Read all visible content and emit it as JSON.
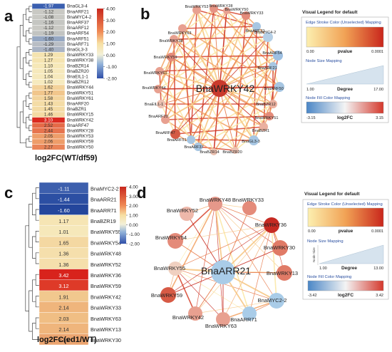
{
  "panel_a": {
    "letter": "a",
    "title": "log2FC(WT/df59)",
    "rows": [
      {
        "value": "-1.97",
        "gene": "BnaGL3-4",
        "color": "#3a5fb0"
      },
      {
        "value": "-1.12",
        "gene": "BnaARF21",
        "color": "#c9c9c4"
      },
      {
        "value": "-1.08",
        "gene": "BnaMYC4-2",
        "color": "#c9c9c4"
      },
      {
        "value": "-1.16",
        "gene": "BnaARF37",
        "color": "#c5c6c2"
      },
      {
        "value": "-1.12",
        "gene": "BnaARF12",
        "color": "#c9c9c4"
      },
      {
        "value": "-1.19",
        "gene": "BnaARF54",
        "color": "#c2c4c2"
      },
      {
        "value": "-1.60",
        "gene": "BnaARF51",
        "color": "#95a7c2"
      },
      {
        "value": "-1.29",
        "gene": "BnaARF71",
        "color": "#b8bdc4"
      },
      {
        "value": "-1.40",
        "gene": "BnaGL3-3",
        "color": "#aab4c4"
      },
      {
        "value": "1.29",
        "gene": "BnaWRKY33",
        "color": "#f5e4b0"
      },
      {
        "value": "1.27",
        "gene": "BnaWRKY38",
        "color": "#f5e4b0"
      },
      {
        "value": "1.10",
        "gene": "BnaBZR14",
        "color": "#f6e8b8"
      },
      {
        "value": "1.05",
        "gene": "BnaBZR20",
        "color": "#f6e9bc"
      },
      {
        "value": "1.04",
        "gene": "BnaEIL1-1",
        "color": "#f6e9bc"
      },
      {
        "value": "1.02",
        "gene": "BnaBZR12",
        "color": "#f6eabe"
      },
      {
        "value": "1.62",
        "gene": "BnaWRKY44",
        "color": "#f3d29a"
      },
      {
        "value": "1.77",
        "gene": "BnaWRKY51",
        "color": "#f1c68c"
      },
      {
        "value": "1.58",
        "gene": "BnaWRKY61",
        "color": "#f3d49c"
      },
      {
        "value": "1.43",
        "gene": "BnaARF20",
        "color": "#f4dca6"
      },
      {
        "value": "1.45",
        "gene": "BnaBZR1",
        "color": "#f4dba4"
      },
      {
        "value": "1.46",
        "gene": "BnaWRKY15",
        "color": "#f4daa3"
      },
      {
        "value": "3.10",
        "gene": "BnaWRKY42",
        "color": "#db2a20"
      },
      {
        "value": "2.52",
        "gene": "BnaARF47",
        "color": "#e56a48"
      },
      {
        "value": "2.44",
        "gene": "BnaWRKY28",
        "color": "#e7744e"
      },
      {
        "value": "2.05",
        "gene": "BnaWRKY53",
        "color": "#ee9e6a"
      },
      {
        "value": "2.06",
        "gene": "BnaWRKY59",
        "color": "#ee9d69"
      },
      {
        "value": "2.27",
        "gene": "BnaWRKY50",
        "color": "#ea8458"
      }
    ]
  },
  "panel_a_scale": {
    "ticks": [
      "4.00",
      "3.00",
      "2.00",
      "1.00",
      "0.00",
      "-1.00",
      "-2.00"
    ]
  },
  "panel_c": {
    "letter": "c",
    "title": "log2FC(ed1/WT)",
    "rows": [
      {
        "value": "-1.11",
        "gene": "BnaMYC2-2",
        "color": "#3d5fad"
      },
      {
        "value": "-1.44",
        "gene": "BnaARR21",
        "color": "#2c4fa3"
      },
      {
        "value": "-1.60",
        "gene": "BnaARR71",
        "color": "#24469c"
      },
      {
        "value": "1.17",
        "gene": "BnaBZR19",
        "color": "#f6e5b4"
      },
      {
        "value": "1.01",
        "gene": "BnaWRKY55",
        "color": "#f6e8ba"
      },
      {
        "value": "1.65",
        "gene": "BnaWRKY54",
        "color": "#f4d8a2"
      },
      {
        "value": "1.36",
        "gene": "BnaWRKY48",
        "color": "#f5dfac"
      },
      {
        "value": "1.36",
        "gene": "BnaWRKY52",
        "color": "#f5dfac"
      },
      {
        "value": "3.42",
        "gene": "BnaWRKY36",
        "color": "#d8231c"
      },
      {
        "value": "3.12",
        "gene": "BnaWRKY59",
        "color": "#de3a28"
      },
      {
        "value": "1.91",
        "gene": "BnaWRKY42",
        "color": "#f1c88e"
      },
      {
        "value": "2.14",
        "gene": "BnaWRKY33",
        "color": "#efb57c"
      },
      {
        "value": "2.03",
        "gene": "BnaWRKY63",
        "color": "#f0be84"
      },
      {
        "value": "2.14",
        "gene": "BnaWRKY13",
        "color": "#efb57c"
      },
      {
        "value": "2.35",
        "gene": "BnaWRKY30",
        "color": "#eca570"
      }
    ]
  },
  "panel_c_scale": {
    "ticks": [
      "4.00",
      "3.00",
      "2.00",
      "1.00",
      "0.00",
      "-1.00",
      "-2.00"
    ]
  },
  "panel_b": {
    "letter": "b",
    "hub": "BnaWRKY42",
    "nodes": [
      "BnaWRKY53",
      "BnaWRKY28",
      "BnaWRKY50",
      "BnaWRKY33",
      "BnaARF71",
      "BnaMYC4-2",
      "BnaARF54",
      "BnaARF21",
      "BnaARF50",
      "BnaBZR12",
      "BnaWRKY51",
      "BnaBZR1",
      "BnaGL3-3",
      "BnaBZR20",
      "BnaBZR14",
      "BnaARF37",
      "BnaARF51",
      "BnaARF47",
      "BnaARF20",
      "BnaEIL1-1",
      "BnaWRKY44",
      "BnaWRKY61",
      "BnaWRKY59",
      "BnaWRKY38",
      "BnaWRKY63"
    ],
    "legend": {
      "title": "Visual Legend for default",
      "edge_label": "Edge Stroke Color (Unselected) Mapping",
      "edge_min": "0.00",
      "edge_center": "pvalue",
      "edge_max": "0.0001",
      "size_label": "Node Size Mapping",
      "size_min": "1.00",
      "size_center": "Degree",
      "size_max": "17.00",
      "fill_label": "Node Fill Color Mapping",
      "fill_min": "-3.15",
      "fill_center": "log2FC",
      "fill_max": "3.15"
    }
  },
  "panel_d": {
    "letter": "d",
    "hub": "BnaARR21",
    "nodes": [
      "BnaWRKY48",
      "BnaWRKY33",
      "BnaWRKY52",
      "BnaWRKY36",
      "BnaWRKY54",
      "BnaWRKY30",
      "BnaWRKY55",
      "BnaWRKY13",
      "BnaWRKY59",
      "BnaMYC2-2",
      "BnaWRKY42",
      "BnaWRKY63",
      "BnaARR71"
    ],
    "legend": {
      "title": "Visual Legend for default",
      "edge_label": "Edge Stroke Color (Unselected) Mapping",
      "edge_min": "0.00",
      "edge_center": "pvalue",
      "edge_max": "0.0001",
      "size_label": "Node Size Mapping",
      "size_axis": "Node Size",
      "size_min": "1.00",
      "size_center": "Degree",
      "size_max": "13.00",
      "fill_label": "Node Fill Color Mapping",
      "fill_min": "-3.42",
      "fill_center": "log2FC",
      "fill_max": "3.42"
    }
  }
}
